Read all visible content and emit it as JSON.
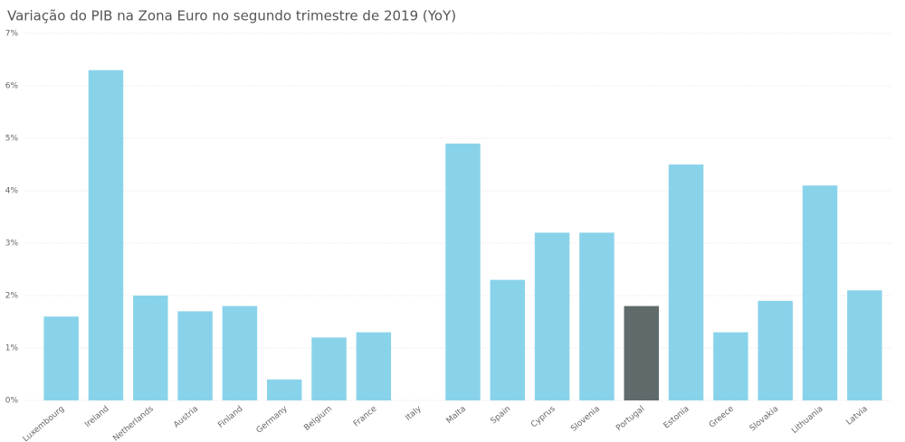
{
  "chart_data": {
    "type": "bar",
    "title": "Variação do PIB na Zona Euro no segundo trimestre de 2019 (YoY)",
    "categories": [
      "Luxembourg",
      "Ireland",
      "Netherlands",
      "Austria",
      "Finland",
      "Germany",
      "Belgium",
      "France",
      "Italy",
      "Malta",
      "Spain",
      "Cyprus",
      "Slovenia",
      "Portugal",
      "Estonia",
      "Greece",
      "Slovakia",
      "Lithuania",
      "Latvia"
    ],
    "values": [
      1.6,
      6.3,
      2.0,
      1.7,
      1.8,
      0.4,
      1.2,
      1.3,
      0,
      4.9,
      2.3,
      3.2,
      3.2,
      1.8,
      4.5,
      1.3,
      1.9,
      4.1,
      2.1
    ],
    "colors": [
      "#89d3ea",
      "#89d3ea",
      "#89d3ea",
      "#89d3ea",
      "#89d3ea",
      "#89d3ea",
      "#89d3ea",
      "#89d3ea",
      "#89d3ea",
      "#89d3ea",
      "#89d3ea",
      "#89d3ea",
      "#89d3ea",
      "#5f6a6b",
      "#89d3ea",
      "#89d3ea",
      "#89d3ea",
      "#89d3ea",
      "#89d3ea"
    ],
    "ylim": [
      0,
      7
    ],
    "yticks": [
      {
        "value": 0,
        "label": "0%"
      },
      {
        "value": 1,
        "label": "1%"
      },
      {
        "value": 2,
        "label": "2%"
      },
      {
        "value": 3,
        "label": "3%"
      },
      {
        "value": 4,
        "label": "4%"
      },
      {
        "value": 5,
        "label": "5%"
      },
      {
        "value": 6,
        "label": "6%"
      },
      {
        "value": 7,
        "label": "7%"
      }
    ],
    "grid": true
  }
}
